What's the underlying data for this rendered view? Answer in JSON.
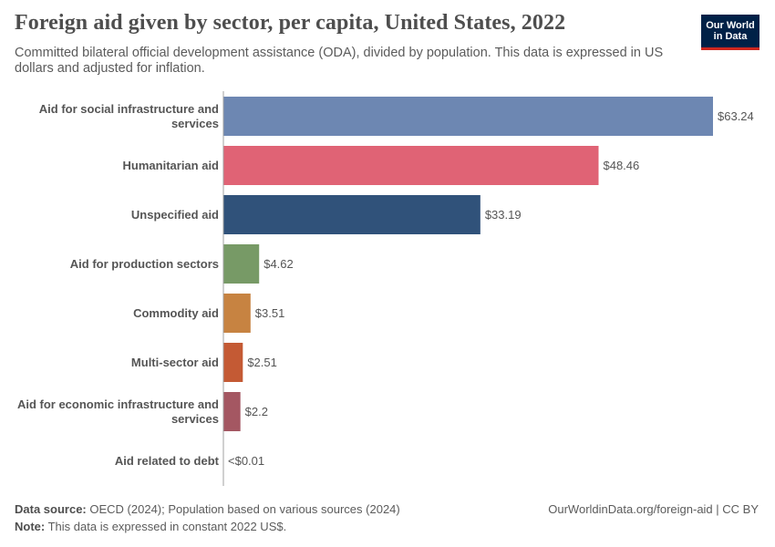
{
  "header": {
    "title": "Foreign aid given by sector, per capita, United States, 2022",
    "subtitle": "Committed bilateral official development assistance (ODA), divided by population. This data is expressed in US dollars and adjusted for inflation."
  },
  "logo": {
    "line1": "Our World",
    "line2": "in Data"
  },
  "footer": {
    "source_label": "Data source:",
    "source_text": "OECD (2024); Population based on various sources (2024)",
    "note_label": "Note:",
    "note_text": "This data is expressed in constant 2022 US$.",
    "url": "OurWorldinData.org/foreign-aid | CC BY"
  },
  "chart_data": {
    "type": "bar",
    "orientation": "horizontal",
    "unit": "US$",
    "categories": [
      [
        "Aid for social infrastructure and",
        "services"
      ],
      [
        "Humanitarian aid"
      ],
      [
        "Unspecified aid"
      ],
      [
        "Aid for production sectors"
      ],
      [
        "Commodity aid"
      ],
      [
        "Multi-sector aid"
      ],
      [
        "Aid for economic infrastructure and",
        "services"
      ],
      [
        "Aid related to debt"
      ]
    ],
    "values": [
      63.24,
      48.46,
      33.19,
      4.62,
      3.51,
      2.51,
      2.2,
      0.001
    ],
    "value_labels": [
      "$63.24",
      "$48.46",
      "$33.19",
      "$4.62",
      "$3.51",
      "$2.51",
      "$2.2",
      "<$0.01"
    ],
    "colors": [
      "#6d87b2",
      "#e06375",
      "#30527a",
      "#779a66",
      "#c78341",
      "#c45a34",
      "#a45762",
      "#a45762"
    ],
    "xlim": [
      0,
      63.24
    ]
  }
}
